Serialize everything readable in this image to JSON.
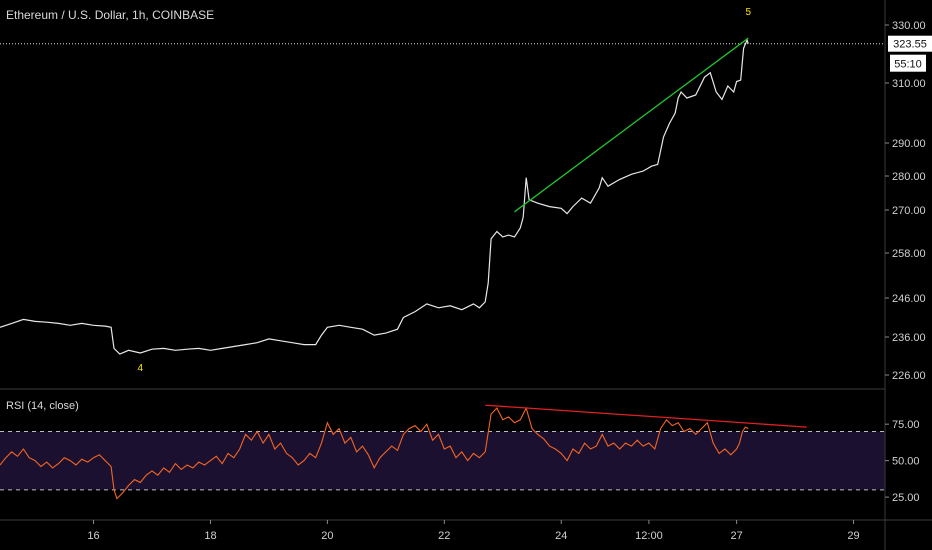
{
  "header": {
    "symbol_title": "Ethereum / U.S. Dollar, 1h, COINBASE"
  },
  "indicator": {
    "title": "RSI (14, close)"
  },
  "colors": {
    "background": "#000000",
    "price_line": "#e8e8e8",
    "rsi_line": "#f26522",
    "rsi_band_fill": "#1c1030",
    "trendline_price": "#22c22e",
    "trendline_rsi": "#e02020",
    "wave_label": "#ffe600",
    "axis_text": "#d0d0d0"
  },
  "price_badges": {
    "last_price": "323.55",
    "countdown": "55:10"
  },
  "chart_data": [
    {
      "type": "line",
      "title": "Ethereum / U.S. Dollar, 1h, COINBASE",
      "y_ticks": [
        "330.00",
        "310.00",
        "290.00",
        "280.00",
        "270.00",
        "258.00",
        "246.00",
        "236.00",
        "226.00"
      ],
      "x_ticks": [
        "16",
        "18",
        "20",
        "22",
        "24",
        "12:00",
        "27",
        "29"
      ],
      "x_tick_days": [
        16,
        18,
        20,
        22,
        24,
        25.5,
        27,
        29
      ],
      "xlim_days": [
        14.4,
        30.0
      ],
      "last_price": 323.55,
      "series": [
        {
          "points": [
            [
              14.4,
              238.5
            ],
            [
              14.6,
              239.5
            ],
            [
              14.8,
              240.5
            ],
            [
              15.0,
              240.0
            ],
            [
              15.2,
              239.8
            ],
            [
              15.4,
              239.5
            ],
            [
              15.6,
              239.0
            ],
            [
              15.8,
              239.5
            ],
            [
              16.0,
              239.0
            ],
            [
              16.2,
              238.8
            ],
            [
              16.3,
              238.5
            ],
            [
              16.35,
              233.0
            ],
            [
              16.45,
              231.5
            ],
            [
              16.6,
              232.5
            ],
            [
              16.8,
              231.8
            ],
            [
              17.0,
              232.8
            ],
            [
              17.2,
              233.0
            ],
            [
              17.4,
              232.5
            ],
            [
              17.6,
              232.8
            ],
            [
              17.8,
              233.0
            ],
            [
              18.0,
              232.5
            ],
            [
              18.2,
              233.0
            ],
            [
              18.4,
              233.5
            ],
            [
              18.6,
              234.0
            ],
            [
              18.8,
              234.5
            ],
            [
              19.0,
              235.5
            ],
            [
              19.2,
              235.0
            ],
            [
              19.4,
              234.5
            ],
            [
              19.6,
              234.0
            ],
            [
              19.8,
              234.0
            ],
            [
              19.9,
              236.5
            ],
            [
              20.0,
              238.5
            ],
            [
              20.2,
              239.0
            ],
            [
              20.4,
              238.5
            ],
            [
              20.6,
              238.0
            ],
            [
              20.8,
              236.5
            ],
            [
              21.0,
              237.0
            ],
            [
              21.2,
              238.0
            ],
            [
              21.3,
              241.0
            ],
            [
              21.5,
              242.5
            ],
            [
              21.7,
              244.5
            ],
            [
              21.9,
              243.5
            ],
            [
              22.1,
              244.0
            ],
            [
              22.3,
              243.0
            ],
            [
              22.5,
              244.5
            ],
            [
              22.6,
              243.5
            ],
            [
              22.7,
              245.0
            ],
            [
              22.75,
              250.0
            ],
            [
              22.8,
              262.0
            ],
            [
              22.9,
              264.0
            ],
            [
              23.0,
              262.5
            ],
            [
              23.1,
              263.0
            ],
            [
              23.2,
              262.5
            ],
            [
              23.3,
              265.0
            ],
            [
              23.35,
              268.0
            ],
            [
              23.4,
              279.5
            ],
            [
              23.45,
              273.0
            ],
            [
              23.6,
              272.0
            ],
            [
              23.8,
              271.0
            ],
            [
              24.0,
              270.5
            ],
            [
              24.1,
              269.0
            ],
            [
              24.2,
              271.0
            ],
            [
              24.35,
              273.5
            ],
            [
              24.5,
              272.0
            ],
            [
              24.65,
              276.5
            ],
            [
              24.7,
              279.5
            ],
            [
              24.8,
              277.0
            ],
            [
              25.0,
              279.0
            ],
            [
              25.2,
              280.5
            ],
            [
              25.4,
              281.5
            ],
            [
              25.55,
              283.0
            ],
            [
              25.65,
              283.5
            ],
            [
              25.75,
              292.0
            ],
            [
              25.85,
              296.5
            ],
            [
              25.95,
              300.0
            ],
            [
              26.0,
              305.0
            ],
            [
              26.05,
              307.0
            ],
            [
              26.15,
              305.0
            ],
            [
              26.3,
              306.0
            ],
            [
              26.45,
              312.0
            ],
            [
              26.55,
              313.5
            ],
            [
              26.65,
              307.0
            ],
            [
              26.75,
              304.5
            ],
            [
              26.85,
              309.0
            ],
            [
              26.95,
              307.0
            ],
            [
              27.0,
              310.5
            ],
            [
              27.07,
              311.0
            ],
            [
              27.12,
              322.0
            ],
            [
              27.18,
              324.8
            ],
            [
              27.2,
              323.55
            ]
          ]
        }
      ],
      "trendline": {
        "from": [
          23.2,
          269.5
        ],
        "to": [
          27.2,
          325.5
        ]
      },
      "wave_labels": [
        {
          "text": "4",
          "x": 16.8,
          "y": 227.0
        },
        {
          "text": "5",
          "x": 27.2,
          "y": 333.5
        }
      ]
    },
    {
      "type": "line",
      "title": "RSI (14, close)",
      "y_ticks": [
        "75.00",
        "50.00",
        "25.00"
      ],
      "ylim": [
        10,
        95
      ],
      "band": [
        30,
        70
      ],
      "xlim_days": [
        14.4,
        30.0
      ],
      "series": [
        {
          "points": [
            [
              14.4,
              47
            ],
            [
              14.5,
              52
            ],
            [
              14.6,
              56
            ],
            [
              14.7,
              53
            ],
            [
              14.8,
              58
            ],
            [
              14.9,
              52
            ],
            [
              15.0,
              50
            ],
            [
              15.1,
              46
            ],
            [
              15.2,
              49
            ],
            [
              15.3,
              45
            ],
            [
              15.4,
              48
            ],
            [
              15.5,
              52
            ],
            [
              15.6,
              50
            ],
            [
              15.7,
              47
            ],
            [
              15.8,
              51
            ],
            [
              15.9,
              49
            ],
            [
              16.0,
              52
            ],
            [
              16.1,
              54
            ],
            [
              16.2,
              50
            ],
            [
              16.3,
              46
            ],
            [
              16.35,
              30
            ],
            [
              16.4,
              24
            ],
            [
              16.5,
              28
            ],
            [
              16.6,
              33
            ],
            [
              16.7,
              37
            ],
            [
              16.8,
              35
            ],
            [
              16.9,
              40
            ],
            [
              17.0,
              43
            ],
            [
              17.1,
              40
            ],
            [
              17.2,
              45
            ],
            [
              17.3,
              42
            ],
            [
              17.4,
              48
            ],
            [
              17.5,
              44
            ],
            [
              17.6,
              47
            ],
            [
              17.7,
              45
            ],
            [
              17.8,
              49
            ],
            [
              17.9,
              47
            ],
            [
              18.0,
              50
            ],
            [
              18.1,
              53
            ],
            [
              18.2,
              48
            ],
            [
              18.3,
              55
            ],
            [
              18.4,
              52
            ],
            [
              18.5,
              58
            ],
            [
              18.6,
              68
            ],
            [
              18.7,
              64
            ],
            [
              18.8,
              70
            ],
            [
              18.9,
              62
            ],
            [
              19.0,
              68
            ],
            [
              19.1,
              58
            ],
            [
              19.2,
              62
            ],
            [
              19.3,
              55
            ],
            [
              19.4,
              52
            ],
            [
              19.5,
              47
            ],
            [
              19.6,
              50
            ],
            [
              19.7,
              55
            ],
            [
              19.8,
              52
            ],
            [
              19.9,
              62
            ],
            [
              20.0,
              76
            ],
            [
              20.1,
              68
            ],
            [
              20.2,
              72
            ],
            [
              20.3,
              62
            ],
            [
              20.4,
              66
            ],
            [
              20.5,
              56
            ],
            [
              20.6,
              60
            ],
            [
              20.7,
              54
            ],
            [
              20.8,
              45
            ],
            [
              20.9,
              52
            ],
            [
              21.0,
              56
            ],
            [
              21.1,
              60
            ],
            [
              21.2,
              57
            ],
            [
              21.3,
              68
            ],
            [
              21.4,
              72
            ],
            [
              21.5,
              74
            ],
            [
              21.6,
              70
            ],
            [
              21.7,
              75
            ],
            [
              21.8,
              64
            ],
            [
              21.9,
              68
            ],
            [
              22.0,
              58
            ],
            [
              22.1,
              60
            ],
            [
              22.2,
              52
            ],
            [
              22.3,
              56
            ],
            [
              22.4,
              50
            ],
            [
              22.5,
              55
            ],
            [
              22.6,
              52
            ],
            [
              22.7,
              56
            ],
            [
              22.8,
              82
            ],
            [
              22.9,
              86
            ],
            [
              23.0,
              78
            ],
            [
              23.1,
              80
            ],
            [
              23.2,
              76
            ],
            [
              23.3,
              78
            ],
            [
              23.4,
              86
            ],
            [
              23.5,
              72
            ],
            [
              23.6,
              68
            ],
            [
              23.7,
              65
            ],
            [
              23.8,
              60
            ],
            [
              23.9,
              58
            ],
            [
              24.0,
              55
            ],
            [
              24.1,
              50
            ],
            [
              24.2,
              58
            ],
            [
              24.3,
              55
            ],
            [
              24.4,
              62
            ],
            [
              24.5,
              58
            ],
            [
              24.6,
              60
            ],
            [
              24.7,
              68
            ],
            [
              24.8,
              60
            ],
            [
              24.9,
              62
            ],
            [
              25.0,
              58
            ],
            [
              25.1,
              62
            ],
            [
              25.2,
              60
            ],
            [
              25.3,
              64
            ],
            [
              25.4,
              60
            ],
            [
              25.5,
              62
            ],
            [
              25.6,
              58
            ],
            [
              25.7,
              72
            ],
            [
              25.8,
              78
            ],
            [
              25.9,
              74
            ],
            [
              26.0,
              76
            ],
            [
              26.1,
              70
            ],
            [
              26.2,
              72
            ],
            [
              26.3,
              68
            ],
            [
              26.4,
              72
            ],
            [
              26.5,
              76
            ],
            [
              26.6,
              62
            ],
            [
              26.7,
              55
            ],
            [
              26.8,
              58
            ],
            [
              26.9,
              54
            ],
            [
              27.0,
              58
            ],
            [
              27.05,
              62
            ],
            [
              27.1,
              70
            ],
            [
              27.15,
              73
            ],
            [
              27.2,
              72
            ]
          ]
        }
      ],
      "trendline": {
        "from": [
          22.7,
          88
        ],
        "to": [
          28.2,
          73
        ]
      }
    }
  ]
}
